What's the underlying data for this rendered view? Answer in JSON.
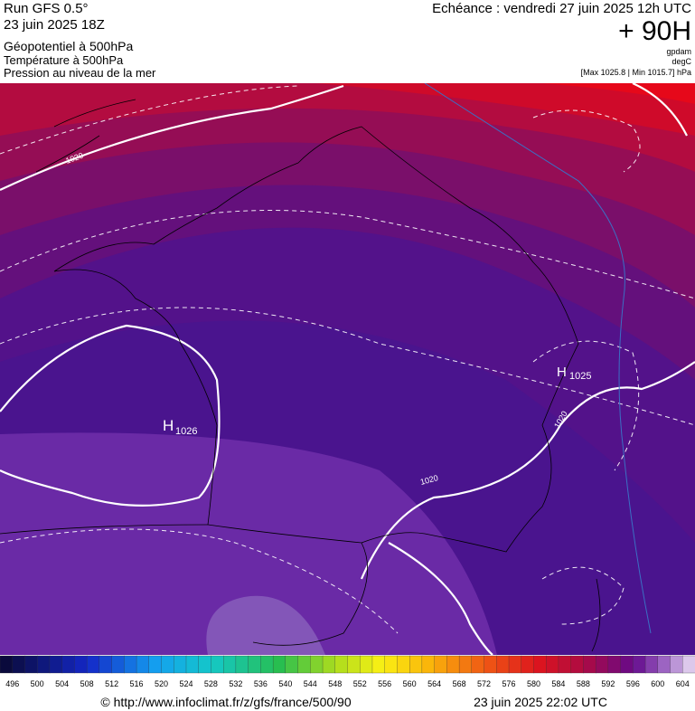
{
  "header": {
    "run": "Run GFS 0.5°",
    "run_date": "23 juin 2025 18Z",
    "title": "Géopotentiel à 500hPa",
    "subtitle_1": "Température à 500hPa",
    "subtitle_2": "Pression au niveau de la mer",
    "forecast": "Echéance : vendredi 27 juin 2025 12h UTC",
    "lead": "+ 90H",
    "unit_1": "gpdam",
    "unit_2": "degC",
    "range": "[Max 1025.8 | Min 1015.7] hPa"
  },
  "map": {
    "highs": [
      {
        "letter": "H",
        "value": "1026"
      },
      {
        "letter": "H",
        "value": "1025"
      }
    ],
    "isobar_labels": [
      "1020",
      "1020",
      "1020"
    ]
  },
  "colorbar": {
    "labels": [
      496,
      500,
      504,
      508,
      512,
      516,
      520,
      524,
      528,
      532,
      536,
      540,
      544,
      548,
      552,
      556,
      560,
      564,
      568,
      572,
      576,
      580,
      584,
      588,
      592,
      596,
      600,
      604
    ]
  },
  "footer": {
    "url": "© http://www.infoclimat.fr/z/gfs/france/500/90",
    "date": "23 juin 2025 22:02 UTC"
  }
}
